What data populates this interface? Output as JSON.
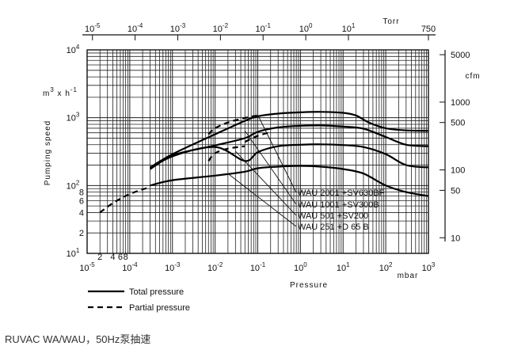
{
  "chart_data": {
    "type": "line",
    "x_axis": {
      "label": "Pressure",
      "unit": "mbar",
      "scale": "log",
      "range": [
        1e-05,
        1000
      ],
      "ticks": [
        {
          "base": "10",
          "exp": "-5"
        },
        {
          "base": "10",
          "exp": "-4"
        },
        {
          "base": "10",
          "exp": "-3"
        },
        {
          "base": "10",
          "exp": "-2"
        },
        {
          "base": "10",
          "exp": "-1"
        },
        {
          "base": "10",
          "exp": "0"
        },
        {
          "base": "10",
          "exp": "1"
        },
        {
          "base": "10",
          "exp": "2"
        },
        {
          "base": "10",
          "exp": "3"
        }
      ],
      "minor_labels": [
        {
          "value": 2e-05,
          "text": "2"
        },
        {
          "value": 4e-05,
          "text": "4"
        },
        {
          "value": 6e-05,
          "text": "6"
        },
        {
          "value": 8e-05,
          "text": "8"
        }
      ]
    },
    "top_axis": {
      "unit": "Torr",
      "ticks": [
        {
          "base": "10",
          "exp": "-5"
        },
        {
          "base": "10",
          "exp": "-4"
        },
        {
          "base": "10",
          "exp": "-3"
        },
        {
          "base": "10",
          "exp": "-2"
        },
        {
          "base": "10",
          "exp": "-1"
        },
        {
          "base": "10",
          "exp": "0"
        },
        {
          "base": "10",
          "exp": "1"
        }
      ],
      "end_label": "750"
    },
    "y_axis": {
      "label": "Pumping speed",
      "unit_base": "m",
      "unit_exp1": "3",
      "unit_mid": " x h",
      "unit_exp2": "-1",
      "scale": "log",
      "range": [
        10,
        10000
      ],
      "ticks": [
        {
          "base": "10",
          "exp": "1",
          "value": 10
        },
        {
          "base": "10",
          "exp": "2",
          "value": 100
        },
        {
          "base": "10",
          "exp": "3",
          "value": 1000
        },
        {
          "base": "10",
          "exp": "4",
          "value": 10000
        }
      ],
      "minor_labels": [
        {
          "value": 20,
          "text": "2"
        },
        {
          "value": 40,
          "text": "4"
        },
        {
          "value": 60,
          "text": "6"
        },
        {
          "value": 80,
          "text": "8"
        }
      ]
    },
    "right_axis": {
      "unit": "cfm",
      "ticks": [
        {
          "text": "5000",
          "value": 8495
        },
        {
          "text": "1000",
          "value": 1699
        },
        {
          "text": "500",
          "value": 849.5
        },
        {
          "text": "100",
          "value": 169.9
        },
        {
          "text": "50",
          "value": 84.95
        },
        {
          "text": "10",
          "value": 16.99
        }
      ]
    },
    "series": [
      {
        "name": "WAU 2001 +SV630BF",
        "total": [
          [
            0.0003,
            185
          ],
          [
            0.001,
            290
          ],
          [
            0.01,
            570
          ],
          [
            0.05,
            900
          ],
          [
            0.1,
            1050
          ],
          [
            0.3,
            1150
          ],
          [
            1,
            1200
          ],
          [
            3,
            1220
          ],
          [
            10,
            1180
          ],
          [
            20,
            1080
          ],
          [
            40,
            850
          ],
          [
            100,
            700
          ],
          [
            300,
            650
          ],
          [
            1000,
            640
          ]
        ],
        "partial": [
          [
            0.007,
            570
          ],
          [
            0.01,
            700
          ],
          [
            0.02,
            850
          ],
          [
            0.05,
            990
          ],
          [
            0.1,
            1080
          ]
        ]
      },
      {
        "name": "WAU 1001 +SV300B",
        "total": [
          [
            0.0003,
            180
          ],
          [
            0.001,
            280
          ],
          [
            0.01,
            390
          ],
          [
            0.05,
            500
          ],
          [
            0.1,
            620
          ],
          [
            0.3,
            720
          ],
          [
            1,
            760
          ],
          [
            3,
            770
          ],
          [
            10,
            740
          ],
          [
            30,
            690
          ],
          [
            100,
            520
          ],
          [
            300,
            400
          ],
          [
            1000,
            380
          ]
        ],
        "partial": [
          [
            0.05,
            440
          ],
          [
            0.1,
            540
          ],
          [
            0.2,
            610
          ]
        ]
      },
      {
        "name": "WAU 501 +SV200",
        "total": [
          [
            0.0003,
            175
          ],
          [
            0.001,
            270
          ],
          [
            0.01,
            370
          ],
          [
            0.05,
            230
          ],
          [
            0.1,
            310
          ],
          [
            0.3,
            380
          ],
          [
            1,
            400
          ],
          [
            3,
            405
          ],
          [
            10,
            395
          ],
          [
            30,
            370
          ],
          [
            100,
            290
          ],
          [
            300,
            200
          ],
          [
            1000,
            185
          ]
        ],
        "partial": [
          [
            0.007,
            230
          ],
          [
            0.01,
            300
          ],
          [
            0.02,
            350
          ],
          [
            0.05,
            380
          ]
        ]
      },
      {
        "name": "WAU 251 +D 65 B",
        "total": [
          [
            0.0003,
            100
          ],
          [
            0.001,
            120
          ],
          [
            0.01,
            140
          ],
          [
            0.05,
            160
          ],
          [
            0.1,
            180
          ],
          [
            0.3,
            190
          ],
          [
            1,
            195
          ],
          [
            3,
            190
          ],
          [
            10,
            175
          ],
          [
            30,
            150
          ],
          [
            100,
            100
          ],
          [
            300,
            80
          ],
          [
            1000,
            70
          ]
        ],
        "partial": [
          [
            2e-05,
            40
          ],
          [
            4e-05,
            55
          ],
          [
            0.0001,
            75
          ],
          [
            0.0003,
            95
          ]
        ]
      }
    ],
    "legend": {
      "total_label": "Total pressure",
      "partial_label": "Partial pressure",
      "placement": "bottom-left"
    },
    "grid": true
  },
  "caption": "RUVAC WA/WAU，50Hz泵抽速"
}
